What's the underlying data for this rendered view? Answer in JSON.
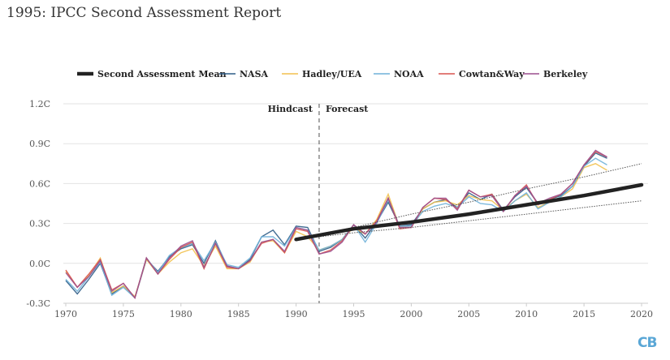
{
  "title": "1995: IPCC Second Assessment Report",
  "logo": "CB",
  "chart_data": {
    "type": "line",
    "xlim": [
      1970,
      2020
    ],
    "ylim": [
      -0.3,
      1.2
    ],
    "x_ticks": [
      1970,
      1975,
      1980,
      1985,
      1990,
      1995,
      2000,
      2005,
      2010,
      2015,
      2020
    ],
    "y_ticks": [
      -0.3,
      0.0,
      0.3,
      0.6,
      0.9,
      1.2
    ],
    "y_tick_labels": [
      "-0.3C",
      "0.0C",
      "0.3C",
      "0.6C",
      "0.9C",
      "1.2C"
    ],
    "grid": "horizontal",
    "legend_position": "top",
    "divider_year": 1992,
    "annotations": {
      "left": "Hindcast",
      "right": "Forecast"
    },
    "projection": {
      "name": "Second Assessment Mean",
      "color": "#222222",
      "x": [
        1990,
        1995,
        2000,
        2005,
        2010,
        2015,
        2020
      ],
      "values": [
        0.18,
        0.26,
        0.31,
        0.37,
        0.44,
        0.51,
        0.59
      ],
      "upper": [
        0.18,
        0.27,
        0.37,
        0.46,
        0.56,
        0.65,
        0.75
      ],
      "lower": [
        0.18,
        0.23,
        0.27,
        0.32,
        0.37,
        0.42,
        0.47
      ]
    },
    "obs_start_year": 1970,
    "series": [
      {
        "name": "NASA",
        "color": "#2f5d87",
        "values": [
          -0.13,
          -0.23,
          -0.12,
          0.0,
          -0.23,
          -0.17,
          -0.26,
          0.03,
          -0.06,
          0.05,
          0.11,
          0.14,
          0.0,
          0.17,
          -0.02,
          -0.04,
          0.03,
          0.2,
          0.25,
          0.14,
          0.28,
          0.27,
          0.09,
          0.12,
          0.18,
          0.29,
          0.19,
          0.31,
          0.46,
          0.28,
          0.29,
          0.41,
          0.46,
          0.48,
          0.42,
          0.53,
          0.48,
          0.52,
          0.4,
          0.5,
          0.57,
          0.45,
          0.48,
          0.51,
          0.58,
          0.73,
          0.83,
          0.79
        ]
      },
      {
        "name": "Hadley/UEA",
        "color": "#f2c14e",
        "values": [
          -0.06,
          -0.18,
          -0.09,
          0.04,
          -0.22,
          -0.17,
          -0.25,
          0.03,
          -0.08,
          0.01,
          0.08,
          0.11,
          -0.02,
          0.13,
          -0.04,
          -0.04,
          0.01,
          0.16,
          0.17,
          0.08,
          0.24,
          0.2,
          0.1,
          0.13,
          0.18,
          0.27,
          0.22,
          0.33,
          0.52,
          0.27,
          0.27,
          0.41,
          0.46,
          0.47,
          0.44,
          0.51,
          0.48,
          0.47,
          0.4,
          0.47,
          0.52,
          0.42,
          0.46,
          0.5,
          0.56,
          0.72,
          0.75,
          0.7
        ]
      },
      {
        "name": "NOAA",
        "color": "#6fb1d9",
        "values": [
          -0.12,
          -0.21,
          -0.1,
          0.01,
          -0.24,
          -0.18,
          -0.26,
          0.04,
          -0.07,
          0.06,
          0.12,
          0.15,
          0.02,
          0.16,
          -0.01,
          -0.03,
          0.04,
          0.2,
          0.2,
          0.13,
          0.27,
          0.25,
          0.1,
          0.13,
          0.18,
          0.29,
          0.16,
          0.3,
          0.48,
          0.28,
          0.28,
          0.39,
          0.43,
          0.45,
          0.42,
          0.5,
          0.45,
          0.44,
          0.39,
          0.47,
          0.53,
          0.41,
          0.46,
          0.5,
          0.58,
          0.73,
          0.79,
          0.74
        ]
      },
      {
        "name": "Cowtan&Way",
        "color": "#d9534f",
        "values": [
          -0.05,
          -0.18,
          -0.08,
          0.03,
          -0.2,
          -0.15,
          -0.26,
          0.04,
          -0.08,
          0.03,
          0.12,
          0.16,
          -0.04,
          0.15,
          -0.03,
          -0.04,
          0.02,
          0.15,
          0.18,
          0.08,
          0.26,
          0.24,
          0.07,
          0.1,
          0.17,
          0.29,
          0.22,
          0.32,
          0.49,
          0.26,
          0.27,
          0.42,
          0.49,
          0.48,
          0.41,
          0.55,
          0.5,
          0.52,
          0.39,
          0.51,
          0.59,
          0.44,
          0.48,
          0.52,
          0.6,
          0.74,
          0.84,
          0.8
        ]
      },
      {
        "name": "Berkeley",
        "color": "#9c4f8d",
        "values": [
          -0.07,
          -0.18,
          -0.1,
          0.02,
          -0.21,
          -0.15,
          -0.26,
          0.04,
          -0.08,
          0.04,
          0.13,
          0.17,
          -0.03,
          0.15,
          -0.02,
          -0.04,
          0.02,
          0.16,
          0.18,
          0.09,
          0.27,
          0.25,
          0.07,
          0.09,
          0.16,
          0.29,
          0.22,
          0.31,
          0.49,
          0.27,
          0.27,
          0.42,
          0.49,
          0.49,
          0.4,
          0.55,
          0.5,
          0.51,
          0.39,
          0.51,
          0.58,
          0.45,
          0.49,
          0.52,
          0.6,
          0.74,
          0.85,
          0.8
        ]
      }
    ]
  }
}
